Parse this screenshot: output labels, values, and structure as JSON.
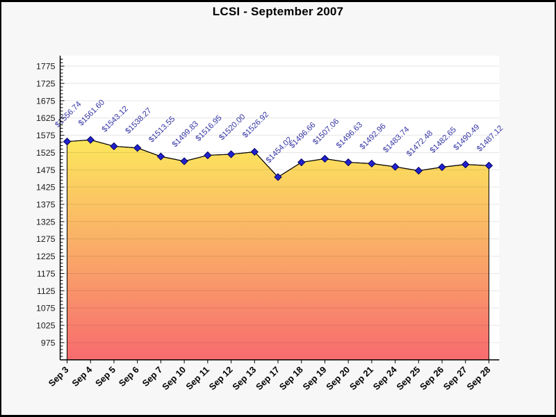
{
  "page": {
    "background": "#f7f7f7",
    "border_color": "#000000"
  },
  "chart_data": {
    "type": "area",
    "title": "LCSI - September 2007",
    "xlabel": "",
    "ylabel": "",
    "legend": false,
    "grid": true,
    "categories": [
      "Sep 3",
      "Sep 4",
      "Sep 5",
      "Sep 6",
      "Sep 7",
      "Sep 10",
      "Sep 11",
      "Sep 12",
      "Sep 13",
      "Sep 17",
      "Sep 18",
      "Sep 19",
      "Sep 20",
      "Sep 21",
      "Sep 24",
      "Sep 25",
      "Sep 26",
      "Sep 27",
      "Sep 28"
    ],
    "values": [
      1556.74,
      1561.6,
      1543.12,
      1538.27,
      1513.55,
      1499.83,
      1516.95,
      1520.0,
      1526.92,
      1454.02,
      1496.66,
      1507.06,
      1496.63,
      1492.96,
      1483.74,
      1472.48,
      1482.65,
      1490.49,
      1487.12
    ],
    "point_labels": [
      "$1556.74",
      "$1561.60",
      "$1543.12",
      "$1538.27",
      "$1513.55",
      "$1499.83",
      "$1516.95",
      "$1520.00",
      "$1526.92",
      "$1454.02",
      "$1496.66",
      "$1507.06",
      "$1496.63",
      "$1492.96",
      "$1483.74",
      "$1472.48",
      "$1482.65",
      "$1490.49",
      "$1487.12"
    ],
    "ylim": [
      925,
      1805
    ],
    "yticks": [
      975,
      1025,
      1075,
      1125,
      1175,
      1225,
      1275,
      1325,
      1375,
      1425,
      1475,
      1525,
      1575,
      1625,
      1675,
      1725,
      1775
    ],
    "y_minor_step": 10,
    "styles": {
      "area_gradient_top": "#FCE95C",
      "area_gradient_mid": "#FAAC68",
      "area_gradient_bottom": "#F76B6E",
      "line_color": "#000000",
      "marker_fill": "#2121CE",
      "marker_stroke": "#000060",
      "point_label_color": "#3434A4",
      "axis_color": "#000000",
      "grid_color": "rgba(0,0,0,0.10)",
      "plot_background": "#ffffff",
      "tick_label_color": "#1a1a1a"
    }
  }
}
